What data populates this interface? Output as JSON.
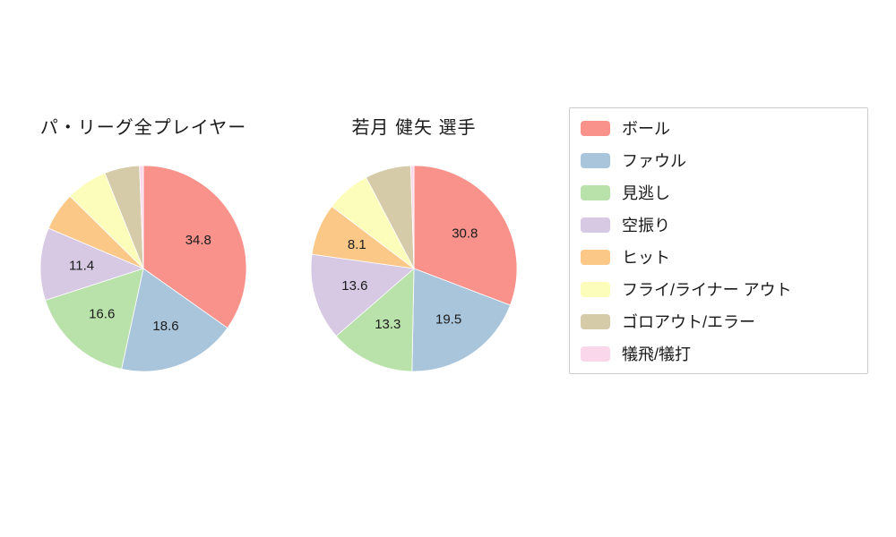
{
  "background_color": "#ffffff",
  "charts": {
    "left_title": "パ・リーグ全プレイヤー",
    "right_title": "若月 健矢  選手"
  },
  "legend": {
    "border_color": "#cccccc",
    "items": [
      {
        "label": "ボール",
        "color": "#f8928a"
      },
      {
        "label": "ファウル",
        "color": "#a9c5dc"
      },
      {
        "label": "見逃し",
        "color": "#b9e1aa"
      },
      {
        "label": "空振り",
        "color": "#d7c8e4"
      },
      {
        "label": "ヒット",
        "color": "#fbc888"
      },
      {
        "label": "フライ/ライナー アウト",
        "color": "#fdfdbb"
      },
      {
        "label": "ゴロアウト/エラー",
        "color": "#d5cba8"
      },
      {
        "label": "犠飛/犠打",
        "color": "#fbd7ec"
      }
    ]
  },
  "chart_data": [
    {
      "type": "pie",
      "title": "パ・リーグ全プレイヤー",
      "start_angle_deg": 90,
      "direction": "clockwise",
      "label_color": "#1b1b1b",
      "slices": [
        {
          "name": "ボール",
          "value": 34.8,
          "label": "34.8",
          "color": "#f8928a"
        },
        {
          "name": "ファウル",
          "value": 18.6,
          "label": "18.6",
          "color": "#a9c5dc"
        },
        {
          "name": "見逃し",
          "value": 16.6,
          "label": "16.6",
          "color": "#b9e1aa"
        },
        {
          "name": "空振り",
          "value": 11.4,
          "label": "11.4",
          "color": "#d7c8e4"
        },
        {
          "name": "ヒット",
          "value": 6.0,
          "label": "",
          "color": "#fbc888"
        },
        {
          "name": "フライ/ライナー アウト",
          "value": 6.5,
          "label": "",
          "color": "#fdfdbb"
        },
        {
          "name": "ゴロアウト/エラー",
          "value": 5.5,
          "label": "",
          "color": "#d5cba8"
        },
        {
          "name": "犠飛/犠打",
          "value": 0.6,
          "label": "",
          "color": "#fbd7ec"
        }
      ]
    },
    {
      "type": "pie",
      "title": "若月 健矢  選手",
      "start_angle_deg": 90,
      "direction": "clockwise",
      "label_color": "#1b1b1b",
      "slices": [
        {
          "name": "ボール",
          "value": 30.8,
          "label": "30.8",
          "color": "#f8928a"
        },
        {
          "name": "ファウル",
          "value": 19.5,
          "label": "19.5",
          "color": "#a9c5dc"
        },
        {
          "name": "見逃し",
          "value": 13.3,
          "label": "13.3",
          "color": "#b9e1aa"
        },
        {
          "name": "空振り",
          "value": 13.6,
          "label": "13.6",
          "color": "#d7c8e4"
        },
        {
          "name": "ヒット",
          "value": 8.1,
          "label": "8.1",
          "color": "#fbc888"
        },
        {
          "name": "フライ/ライナー アウト",
          "value": 7.0,
          "label": "",
          "color": "#fdfdbb"
        },
        {
          "name": "ゴロアウト/エラー",
          "value": 7.2,
          "label": "",
          "color": "#d5cba8"
        },
        {
          "name": "犠飛/犠打",
          "value": 0.5,
          "label": "",
          "color": "#fbd7ec"
        }
      ]
    }
  ]
}
